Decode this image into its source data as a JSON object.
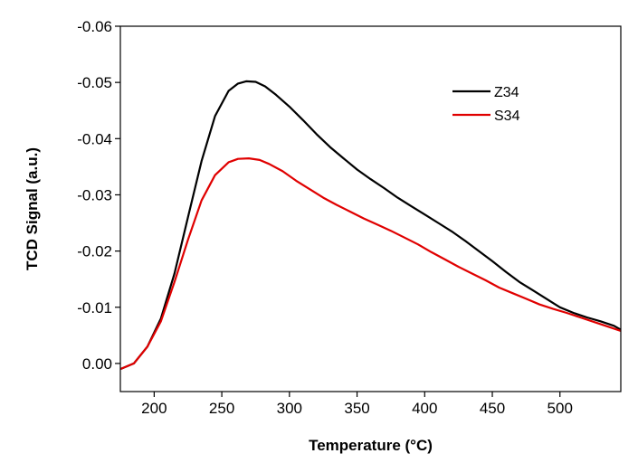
{
  "chart_data": {
    "type": "line",
    "title": "",
    "xlabel": "Temperature (°C)",
    "ylabel": "TCD Signal (a.u.)",
    "xlim": [
      175,
      545
    ],
    "ylim": [
      0.005,
      -0.06
    ],
    "y_axis_inverted": true,
    "x_ticks": [
      200,
      250,
      300,
      350,
      400,
      450,
      500
    ],
    "x_tick_labels": [
      "200",
      "250",
      "300",
      "350",
      "400",
      "450",
      "500"
    ],
    "y_ticks": [
      0.0,
      -0.01,
      -0.02,
      -0.03,
      -0.04,
      -0.05,
      -0.06
    ],
    "y_tick_labels": [
      "0.00",
      "-0.01",
      "-0.02",
      "-0.03",
      "-0.04",
      "-0.05",
      "-0.06"
    ],
    "grid": false,
    "legend_position": "top-right",
    "series": [
      {
        "name": "Z34",
        "color": "#000000",
        "x": [
          175,
          185,
          195,
          205,
          215,
          225,
          235,
          245,
          255,
          262,
          268,
          275,
          282,
          290,
          300,
          310,
          320,
          330,
          340,
          350,
          360,
          370,
          380,
          390,
          400,
          410,
          420,
          430,
          440,
          450,
          460,
          470,
          480,
          490,
          500,
          510,
          520,
          530,
          540,
          545
        ],
        "y": [
          0.001,
          0.0,
          -0.003,
          -0.008,
          -0.016,
          -0.026,
          -0.036,
          -0.044,
          -0.0485,
          -0.0498,
          -0.0502,
          -0.0501,
          -0.0493,
          -0.0478,
          -0.0457,
          -0.0433,
          -0.0408,
          -0.0385,
          -0.0365,
          -0.0345,
          -0.0328,
          -0.0312,
          -0.0295,
          -0.028,
          -0.0265,
          -0.025,
          -0.0235,
          -0.0218,
          -0.02,
          -0.0182,
          -0.0163,
          -0.0145,
          -0.013,
          -0.0115,
          -0.01,
          -0.009,
          -0.0082,
          -0.0075,
          -0.0067,
          -0.006
        ]
      },
      {
        "name": "S34",
        "color": "#e00000",
        "x": [
          175,
          185,
          195,
          205,
          215,
          225,
          235,
          245,
          255,
          262,
          270,
          278,
          285,
          295,
          305,
          315,
          325,
          335,
          345,
          355,
          365,
          375,
          385,
          395,
          405,
          415,
          425,
          435,
          445,
          455,
          465,
          475,
          485,
          495,
          505,
          515,
          525,
          535,
          545
        ],
        "y": [
          0.001,
          0.0,
          -0.003,
          -0.0075,
          -0.0145,
          -0.022,
          -0.029,
          -0.0335,
          -0.0358,
          -0.0364,
          -0.0365,
          -0.0362,
          -0.0355,
          -0.0342,
          -0.0325,
          -0.031,
          -0.0295,
          -0.0282,
          -0.027,
          -0.0258,
          -0.0247,
          -0.0236,
          -0.0224,
          -0.0212,
          -0.0198,
          -0.0185,
          -0.0172,
          -0.016,
          -0.0148,
          -0.0135,
          -0.0125,
          -0.0115,
          -0.0105,
          -0.0097,
          -0.009,
          -0.0082,
          -0.0074,
          -0.0066,
          -0.0058
        ]
      }
    ]
  }
}
